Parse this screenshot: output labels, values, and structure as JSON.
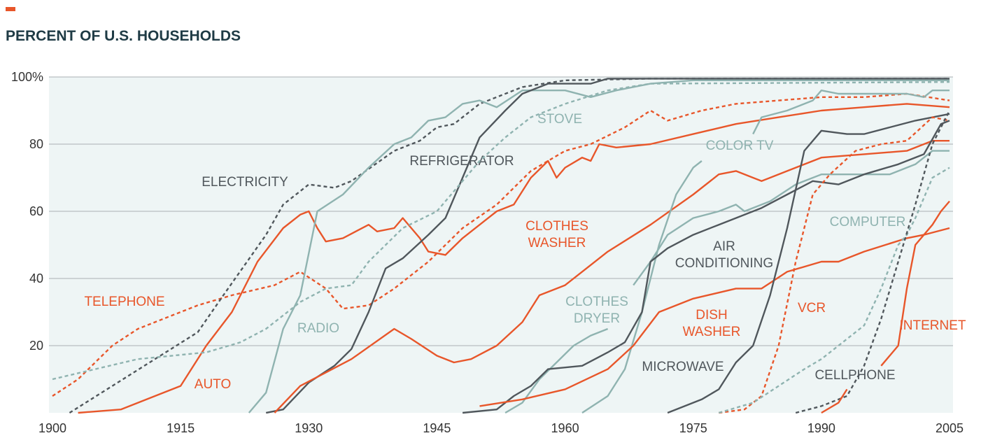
{
  "chart_data": {
    "type": "line",
    "title": "PERCENT OF U.S. HOUSEHOLDS",
    "xlim": [
      1900,
      2005
    ],
    "xticks": [
      1900,
      1915,
      1930,
      1945,
      1960,
      1975,
      1990,
      2005
    ],
    "ylim": [
      0,
      100
    ],
    "yticks": [
      {
        "value": 100,
        "label": "100%"
      },
      80,
      60,
      40,
      20
    ],
    "grid": true,
    "series": [
      {
        "name": "TELEPHONE",
        "color": "#e8562a",
        "dash": true,
        "x": [
          1900,
          1903,
          1907,
          1910,
          1914,
          1917,
          1921,
          1926,
          1929,
          1932,
          1934,
          1937,
          1940,
          1944,
          1948,
          1952,
          1956,
          1960,
          1963,
          1967,
          1970,
          1972,
          1976,
          1980,
          1985,
          1990,
          1995,
          2000,
          2005
        ],
        "values": [
          5,
          10,
          20,
          25,
          29,
          32,
          35,
          38,
          42,
          37,
          31,
          32,
          37,
          45,
          55,
          62,
          72,
          78,
          80,
          85,
          90,
          87,
          90,
          92,
          93,
          94,
          94,
          95,
          93
        ]
      },
      {
        "name": "AUTO",
        "color": "#e8562a",
        "dash": false,
        "x": [
          1903,
          1908,
          1912,
          1915,
          1918,
          1921,
          1924,
          1927,
          1929,
          1930,
          1931,
          1932,
          1934,
          1937,
          1938,
          1940,
          1941,
          1943,
          1944,
          1946,
          1948,
          1951,
          1952,
          1954,
          1956,
          1958,
          1959,
          1960,
          1962,
          1963,
          1964,
          1966,
          1970,
          1975,
          1980,
          1985,
          1990,
          1995,
          2000,
          2005
        ],
        "values": [
          0,
          1,
          5,
          8,
          20,
          30,
          45,
          55,
          59,
          60,
          55,
          51,
          52,
          56,
          54,
          55,
          58,
          52,
          48,
          47,
          52,
          58,
          60,
          62,
          70,
          75,
          70,
          73,
          76,
          75,
          80,
          79,
          80,
          83,
          86,
          88,
          90,
          91,
          92,
          91
        ]
      },
      {
        "name": "ELECTRICITY",
        "color": "#50575c",
        "dash": true,
        "x": [
          1902,
          1907,
          1912,
          1917,
          1920,
          1925,
          1927,
          1930,
          1933,
          1935,
          1940,
          1943,
          1945,
          1947,
          1950,
          1952,
          1955,
          1960,
          1970,
          2005
        ],
        "values": [
          0,
          8,
          16,
          24,
          35,
          53,
          62,
          68,
          67,
          69,
          78,
          81,
          85,
          86,
          92,
          94,
          97,
          99,
          99.5,
          99.5
        ]
      },
      {
        "name": "RADIO",
        "color": "#8fb3b0",
        "dash": false,
        "x": [
          1923,
          1925,
          1927,
          1929,
          1931,
          1934,
          1937,
          1940,
          1942,
          1944,
          1946,
          1948,
          1950,
          1952,
          1955,
          1960,
          1963,
          1966,
          1970,
          1975,
          2005
        ],
        "values": [
          0,
          6,
          25,
          35,
          60,
          65,
          73,
          80,
          82,
          87,
          88,
          92,
          93,
          91,
          96,
          96,
          94,
          96,
          98,
          99,
          99
        ]
      },
      {
        "name": "REFRIGERATOR",
        "color": "#50575c",
        "dash": false,
        "x": [
          1925,
          1927,
          1930,
          1933,
          1935,
          1937,
          1939,
          1941,
          1944,
          1946,
          1948,
          1950,
          1953,
          1955,
          1958,
          1963,
          1965,
          2005
        ],
        "values": [
          0,
          1,
          9,
          14,
          19,
          30,
          43,
          46,
          53,
          58,
          70,
          82,
          90,
          95,
          98,
          98,
          99.5,
          99.5
        ]
      },
      {
        "name": "STOVE",
        "color": "#8fb3b0",
        "dash": true,
        "x": [
          1900,
          1905,
          1910,
          1918,
          1922,
          1925,
          1929,
          1932,
          1935,
          1937,
          1939,
          1941,
          1945,
          1950,
          1953,
          1956,
          1960,
          1965,
          1970,
          2005
        ],
        "values": [
          10,
          13,
          16,
          18,
          21,
          25,
          33,
          37,
          38,
          45,
          50,
          55,
          60,
          75,
          82,
          88,
          92,
          96,
          98,
          98.5
        ]
      },
      {
        "name": "CLOTHES\nWASHER",
        "color": "#e8562a",
        "dash": false,
        "x": [
          1926,
          1929,
          1935,
          1940,
          1942,
          1945,
          1947,
          1949,
          1952,
          1955,
          1957,
          1960,
          1965,
          1970,
          1975,
          1978,
          1980,
          1983,
          1986,
          1990,
          1995,
          2000,
          2003,
          2005
        ],
        "values": [
          0,
          8,
          16,
          25,
          22,
          17,
          15,
          16,
          20,
          27,
          35,
          38,
          48,
          56,
          65,
          71,
          72,
          69,
          72,
          76,
          77,
          78,
          81,
          81
        ]
      },
      {
        "name": "CLOTHES\nDRYER",
        "color": "#8fb3b0",
        "dash": false,
        "x": [
          1953,
          1955,
          1957,
          1959,
          1961,
          1963,
          1965,
          1966,
          1968,
          1970,
          1972,
          1975,
          1978,
          1980,
          1981,
          1984,
          1987,
          1990,
          1995,
          1998,
          2001,
          2003,
          2005
        ],
        "values": [
          0,
          3,
          10,
          15,
          20,
          23,
          25,
          null,
          38,
          45,
          53,
          58,
          60,
          62,
          60,
          63,
          68,
          71,
          71,
          71,
          74,
          78,
          78
        ]
      },
      {
        "name": "COLOR TV",
        "color": "#8fb3b0",
        "dash": false,
        "x": [
          1962,
          1965,
          1967,
          1969,
          1971,
          1973,
          1975,
          1976,
          1979,
          1982,
          1983,
          1986,
          1989,
          1990,
          1992,
          1995,
          2000,
          2002,
          2003,
          2005
        ],
        "values": [
          0,
          5,
          13,
          30,
          50,
          65,
          73,
          75,
          null,
          83,
          88,
          90,
          93,
          96,
          95,
          95,
          95,
          94,
          96,
          96
        ]
      },
      {
        "name": "AIR\nCONDITIONING",
        "color": "#50575c",
        "dash": false,
        "x": [
          1948,
          1952,
          1954,
          1956,
          1958,
          1962,
          1965,
          1967,
          1969,
          1970,
          1972,
          1975,
          1978,
          1980,
          1983,
          1986,
          1989,
          1992,
          1995,
          1999,
          2002,
          2004,
          2005
        ],
        "values": [
          0,
          1,
          5,
          8,
          13,
          14,
          18,
          21,
          30,
          45,
          49,
          53,
          56,
          58,
          61,
          65,
          69,
          68,
          71,
          74,
          77,
          86,
          87
        ]
      },
      {
        "name": "DISH\nWASHER",
        "color": "#e8562a",
        "dash": false,
        "x": [
          1950,
          1955,
          1960,
          1965,
          1968,
          1971,
          1975,
          1980,
          1983,
          1986,
          1990,
          1992,
          1995,
          2000,
          2002,
          2005
        ],
        "values": [
          2,
          4,
          7,
          13,
          20,
          30,
          34,
          37,
          37,
          42,
          45,
          45,
          48,
          52,
          53,
          55
        ]
      },
      {
        "name": "MICROWAVE",
        "color": "#50575c",
        "dash": false,
        "x": [
          1972,
          1976,
          1978,
          1980,
          1982,
          1984,
          1986,
          1988,
          1990,
          1993,
          1995,
          1998,
          2001,
          2005
        ],
        "values": [
          0,
          4,
          7,
          15,
          20,
          35,
          55,
          78,
          84,
          83,
          83,
          85,
          87,
          89
        ]
      },
      {
        "name": "VCR",
        "color": "#e8562a",
        "dash": true,
        "x": [
          1978,
          1981,
          1983,
          1985,
          1987,
          1989,
          1991,
          1994,
          1997,
          2000,
          2003,
          2005
        ],
        "values": [
          0,
          1,
          5,
          20,
          45,
          65,
          71,
          78,
          80,
          81,
          88,
          87
        ]
      },
      {
        "name": "COMPUTER",
        "color": "#8fb3b0",
        "dash": true,
        "x": [
          1978,
          1982,
          1985,
          1988,
          1990,
          1993,
          1995,
          1997,
          1999,
          2000,
          2001,
          2003,
          2005
        ],
        "values": [
          0,
          3,
          8,
          13,
          16,
          22,
          26,
          37,
          50,
          53,
          58,
          70,
          73
        ]
      },
      {
        "name": "CELLPHONE",
        "color": "#50575c",
        "dash": true,
        "x": [
          1987,
          1990,
          1993,
          1995,
          1997,
          1999,
          2001,
          2003,
          2005
        ],
        "values": [
          0,
          2,
          5,
          14,
          28,
          45,
          62,
          80,
          90
        ]
      },
      {
        "name": "INTERNET",
        "color": "#e8562a",
        "dash": false,
        "x": [
          1990,
          1992,
          1993,
          1995,
          1997,
          1999,
          2000,
          2001,
          2003,
          2004,
          2005
        ],
        "values": [
          0,
          3,
          7,
          null,
          14,
          20,
          37,
          50,
          56,
          60,
          63
        ]
      }
    ]
  }
}
